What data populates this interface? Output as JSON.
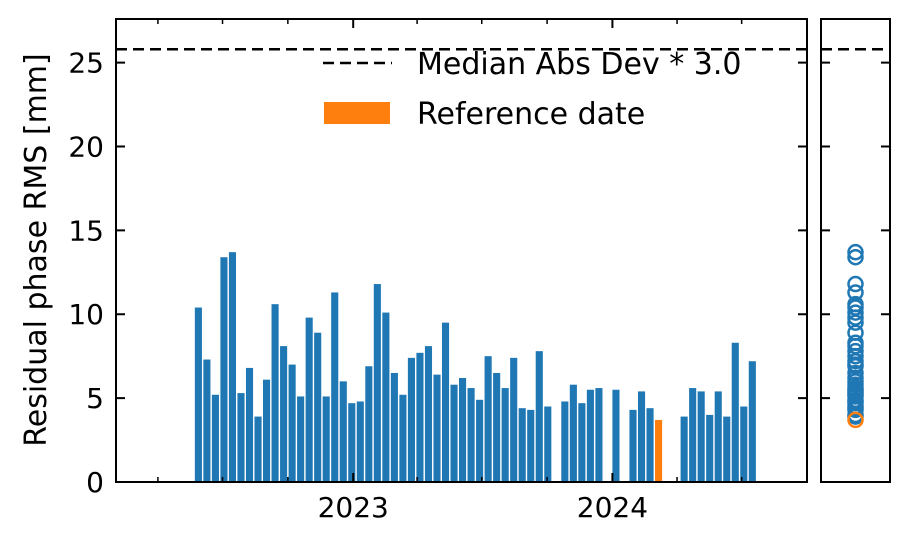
{
  "chart_data": [
    {
      "type": "bar",
      "ylabel": "Residual phase RMS [mm]",
      "xlabel": "",
      "title": "",
      "ylim": [
        0,
        27.6
      ],
      "yticks": [
        0,
        5,
        10,
        15,
        20,
        25
      ],
      "xlim": [
        "2022-02-01",
        "2024-10-01"
      ],
      "xticks": [
        {
          "date": "2023-01-01",
          "label": "2023"
        },
        {
          "date": "2024-01-01",
          "label": "2024"
        }
      ],
      "minor_xtick_dates": [
        "2022-04-01",
        "2022-07-01",
        "2022-10-01",
        "2023-04-01",
        "2023-07-01",
        "2023-10-01",
        "2024-04-01",
        "2024-07-01"
      ],
      "series": [
        {
          "color": "#1f77b4",
          "dates": [
            "2022-05-28",
            "2022-06-09",
            "2022-06-21",
            "2022-07-03",
            "2022-07-15",
            "2022-07-27",
            "2022-08-08",
            "2022-08-20",
            "2022-09-01",
            "2022-09-13",
            "2022-09-25",
            "2022-10-07",
            "2022-10-19",
            "2022-10-31",
            "2022-11-12",
            "2022-11-24",
            "2022-12-06",
            "2022-12-18",
            "2022-12-30",
            "2023-01-11",
            "2023-01-23",
            "2023-02-04",
            "2023-02-16",
            "2023-02-28",
            "2023-03-12",
            "2023-03-24",
            "2023-04-05",
            "2023-04-17",
            "2023-04-29",
            "2023-05-11",
            "2023-05-23",
            "2023-06-04",
            "2023-06-16",
            "2023-06-28",
            "2023-07-10",
            "2023-07-22",
            "2023-08-03",
            "2023-08-15",
            "2023-08-27",
            "2023-09-08",
            "2023-09-20",
            "2023-10-02",
            "2023-10-26",
            "2023-11-07",
            "2023-11-19",
            "2023-12-01",
            "2023-12-13",
            "2024-01-06",
            "2024-01-30",
            "2024-02-11",
            "2024-02-23",
            "2024-04-11",
            "2024-04-23",
            "2024-05-05",
            "2024-05-17",
            "2024-05-29",
            "2024-06-10",
            "2024-06-22",
            "2024-07-04",
            "2024-07-16"
          ],
          "values": [
            10.4,
            7.3,
            5.2,
            13.4,
            13.7,
            5.3,
            6.8,
            3.9,
            6.1,
            10.6,
            8.1,
            7.0,
            5.1,
            9.8,
            8.9,
            5.1,
            11.3,
            6.0,
            4.7,
            4.8,
            6.9,
            11.8,
            10.1,
            6.5,
            5.2,
            7.4,
            7.7,
            8.1,
            6.4,
            9.5,
            5.8,
            6.2,
            5.6,
            4.9,
            7.5,
            6.5,
            5.6,
            7.4,
            4.4,
            4.3,
            7.8,
            4.5,
            4.8,
            5.8,
            4.7,
            5.5,
            5.6,
            5.5,
            4.3,
            5.4,
            4.4,
            3.9,
            5.6,
            5.4,
            4.0,
            5.4,
            3.9,
            8.3,
            4.5,
            7.2
          ]
        },
        {
          "name": "Reference date",
          "color": "#ff7f0e",
          "dates": [
            "2024-03-06"
          ],
          "values": [
            3.7
          ]
        }
      ],
      "threshold": {
        "name": "Median Abs Dev * 3.0",
        "value": 25.8,
        "style": "dashed",
        "color": "#000000"
      },
      "legend": {
        "placement": "top-right",
        "entries": [
          {
            "label": "Median Abs Dev * 3.0",
            "kind": "dashed-line"
          },
          {
            "label": "Reference date",
            "kind": "bar"
          }
        ]
      },
      "grid": false
    },
    {
      "type": "scatter",
      "title": "",
      "xlabel": "",
      "ylabel": "",
      "ylim": [
        0,
        27.6
      ],
      "marker": "open-circle",
      "series": [
        {
          "color": "#1f77b4",
          "values": [
            13.7,
            13.4,
            11.8,
            11.3,
            10.6,
            10.4,
            10.1,
            9.8,
            9.5,
            8.9,
            8.3,
            8.1,
            7.8,
            7.5,
            7.2,
            7.0,
            6.9,
            6.5,
            6.2,
            6.0,
            5.8,
            5.6,
            5.5,
            5.4,
            5.3,
            5.2,
            5.1,
            4.9,
            4.8,
            4.7,
            4.5,
            4.4,
            4.3,
            4.0,
            3.9
          ]
        },
        {
          "name": "Reference date",
          "color": "#ff7f0e",
          "values": [
            3.7
          ]
        }
      ],
      "threshold": {
        "value": 25.8,
        "style": "dashed",
        "color": "#000000"
      }
    }
  ]
}
